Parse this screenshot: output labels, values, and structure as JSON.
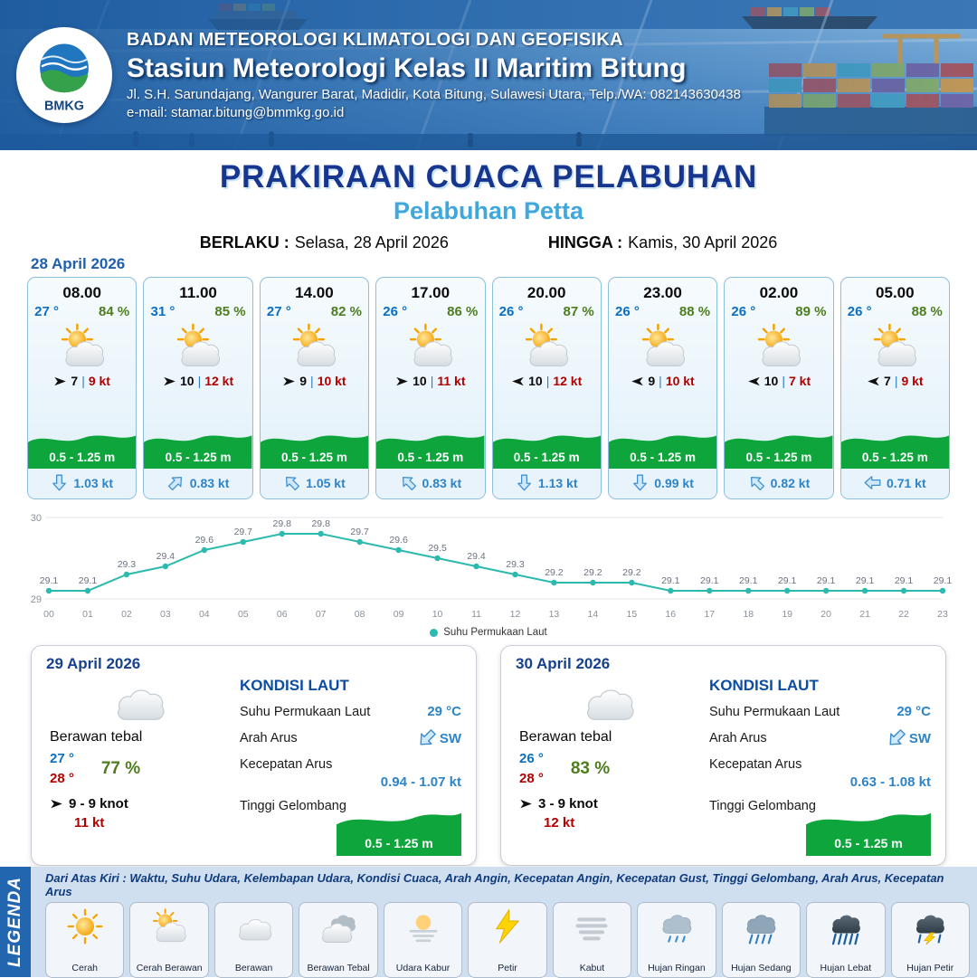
{
  "header": {
    "logo_text": "BMKG",
    "org": "BADAN METEOROLOGI KLIMATOLOGI DAN GEOFISIKA",
    "station": "Stasiun Meteorologi Kelas II Maritim Bitung",
    "address": "Jl. S.H. Sarundajang, Wangurer Barat, Madidir, Kota Bitung, Sulawesi Utara, Telp./WA: 082143630438",
    "email": "e-mail: stamar.bitung@bmmkg.go.id"
  },
  "title": {
    "main": "PRAKIRAAN CUACA PELABUHAN",
    "sub": "Pelabuhan Petta",
    "valid_from_label": "BERLAKU :",
    "valid_from": "Selasa, 28 April 2026",
    "valid_to_label": "HINGGA :",
    "valid_to": "Kamis, 30 April 2026"
  },
  "colors": {
    "accent_blue": "#1f5fae",
    "temp_blue": "#0a6fc2",
    "humidity_green": "#4e7d1e",
    "gust_red": "#b00000",
    "wave_green": "#0ea53c",
    "sst_teal": "#2cb9ae"
  },
  "hourly": {
    "date": "28 April 2026",
    "cards": [
      {
        "time": "08.00",
        "temp": "27 °",
        "rh": "84 %",
        "wind": "7",
        "sep": "|",
        "gust": "9 kt",
        "wind_dir": "E",
        "wave": "0.5 - 1.25 m",
        "cur": "1.03 kt",
        "current_dir": "S"
      },
      {
        "time": "11.00",
        "temp": "31 °",
        "rh": "85 %",
        "wind": "10",
        "sep": "|",
        "gust": "12 kt",
        "wind_dir": "E",
        "wave": "0.5 - 1.25 m",
        "cur": "0.83 kt",
        "current_dir": "NE"
      },
      {
        "time": "14.00",
        "temp": "27 °",
        "rh": "82 %",
        "wind": "9",
        "sep": "|",
        "gust": "10 kt",
        "wind_dir": "E",
        "wave": "0.5 - 1.25 m",
        "cur": "1.05 kt",
        "current_dir": "NW"
      },
      {
        "time": "17.00",
        "temp": "26 °",
        "rh": "86 %",
        "wind": "10",
        "sep": "|",
        "gust": "11 kt",
        "wind_dir": "E",
        "wave": "0.5 - 1.25 m",
        "cur": "0.83 kt",
        "current_dir": "NW"
      },
      {
        "time": "20.00",
        "temp": "26 °",
        "rh": "87 %",
        "wind": "10",
        "sep": "|",
        "gust": "12 kt",
        "wind_dir": "W",
        "wave": "0.5 - 1.25 m",
        "cur": "1.13 kt",
        "current_dir": "S"
      },
      {
        "time": "23.00",
        "temp": "26 °",
        "rh": "88 %",
        "wind": "9",
        "sep": "|",
        "gust": "10 kt",
        "wind_dir": "W",
        "wave": "0.5 - 1.25 m",
        "cur": "0.99 kt",
        "current_dir": "S"
      },
      {
        "time": "02.00",
        "temp": "26 °",
        "rh": "89 %",
        "wind": "10",
        "sep": "|",
        "gust": "7 kt",
        "wind_dir": "W",
        "wave": "0.5 - 1.25 m",
        "cur": "0.82 kt",
        "current_dir": "NW"
      },
      {
        "time": "05.00",
        "temp": "26 °",
        "rh": "88 %",
        "wind": "7",
        "sep": "|",
        "gust": "9 kt",
        "wind_dir": "W",
        "wave": "0.5 - 1.25 m",
        "cur": "0.71 kt",
        "current_dir": "W"
      }
    ]
  },
  "chart_data": {
    "type": "line",
    "x": [
      "00",
      "01",
      "02",
      "03",
      "04",
      "05",
      "06",
      "07",
      "08",
      "09",
      "10",
      "11",
      "12",
      "13",
      "14",
      "15",
      "16",
      "17",
      "18",
      "19",
      "20",
      "21",
      "22",
      "23"
    ],
    "series": [
      {
        "name": "Suhu Permukaan Laut",
        "values": [
          29.1,
          29.1,
          29.3,
          29.4,
          29.6,
          29.7,
          29.8,
          29.8,
          29.7,
          29.6,
          29.5,
          29.4,
          29.3,
          29.2,
          29.2,
          29.2,
          29.1,
          29.1,
          29.1,
          29.1,
          29.1,
          29.1,
          29.1,
          29.1
        ]
      }
    ],
    "ylim": [
      29,
      30
    ],
    "yticks": [
      29,
      30
    ],
    "legend_position": "bottom",
    "line_color": "#2cb9ae"
  },
  "daily": [
    {
      "date": "29 April 2026",
      "condition": "Berawan tebal",
      "temp_min": "27 °",
      "temp_max": "28 °",
      "rh": "77 %",
      "wind": "9  - 9 knot",
      "gust": "11 kt",
      "sea_title": "KONDISI LAUT",
      "sst_label": "Suhu Permukaan Laut",
      "sst": "29 °C",
      "current_dir_label": "Arah Arus",
      "current_dir": "SW",
      "current_speed_label": "Kecepatan Arus",
      "current_speed": "0.94 - 1.07 kt",
      "wave_label": "Tinggi Gelombang",
      "wave": "0.5 - 1.25 m"
    },
    {
      "date": "30 April 2026",
      "condition": "Berawan tebal",
      "temp_min": "26 °",
      "temp_max": "28 °",
      "rh": "83 %",
      "wind": "3  - 9 knot",
      "gust": "12 kt",
      "sea_title": "KONDISI LAUT",
      "sst_label": "Suhu Permukaan Laut",
      "sst": "29 °C",
      "current_dir_label": "Arah Arus",
      "current_dir": "SW",
      "current_speed_label": "Kecepatan Arus",
      "current_speed": "0.63 - 1.08 kt",
      "wave_label": "Tinggi Gelombang",
      "wave": "0.5 - 1.25 m"
    }
  ],
  "legend": {
    "title": "LEGENDA",
    "note": "Dari Atas Kiri : Waktu, Suhu Udara, Kelembapan Udara, Kondisi Cuaca, Arah Angin, Kecepatan Angin, Kecepatan Gust, Tinggi Gelombang, Arah Arus, Kecepatan Arus",
    "items": [
      {
        "label": "Cerah",
        "icon": "sun"
      },
      {
        "label": "Cerah Berawan",
        "icon": "sun-cloud"
      },
      {
        "label": "Berawan",
        "icon": "cloud"
      },
      {
        "label": "Berawan Tebal",
        "icon": "clouds"
      },
      {
        "label": "Udara Kabur",
        "icon": "haze"
      },
      {
        "label": "Petir",
        "icon": "lightning"
      },
      {
        "label": "Kabut",
        "icon": "fog"
      },
      {
        "label": "Hujan Ringan",
        "icon": "light-rain"
      },
      {
        "label": "Hujan Sedang",
        "icon": "moderate-rain"
      },
      {
        "label": "Hujan Lebat",
        "icon": "heavy-rain"
      },
      {
        "label": "Hujan Petir",
        "icon": "thunderstorm"
      }
    ]
  }
}
